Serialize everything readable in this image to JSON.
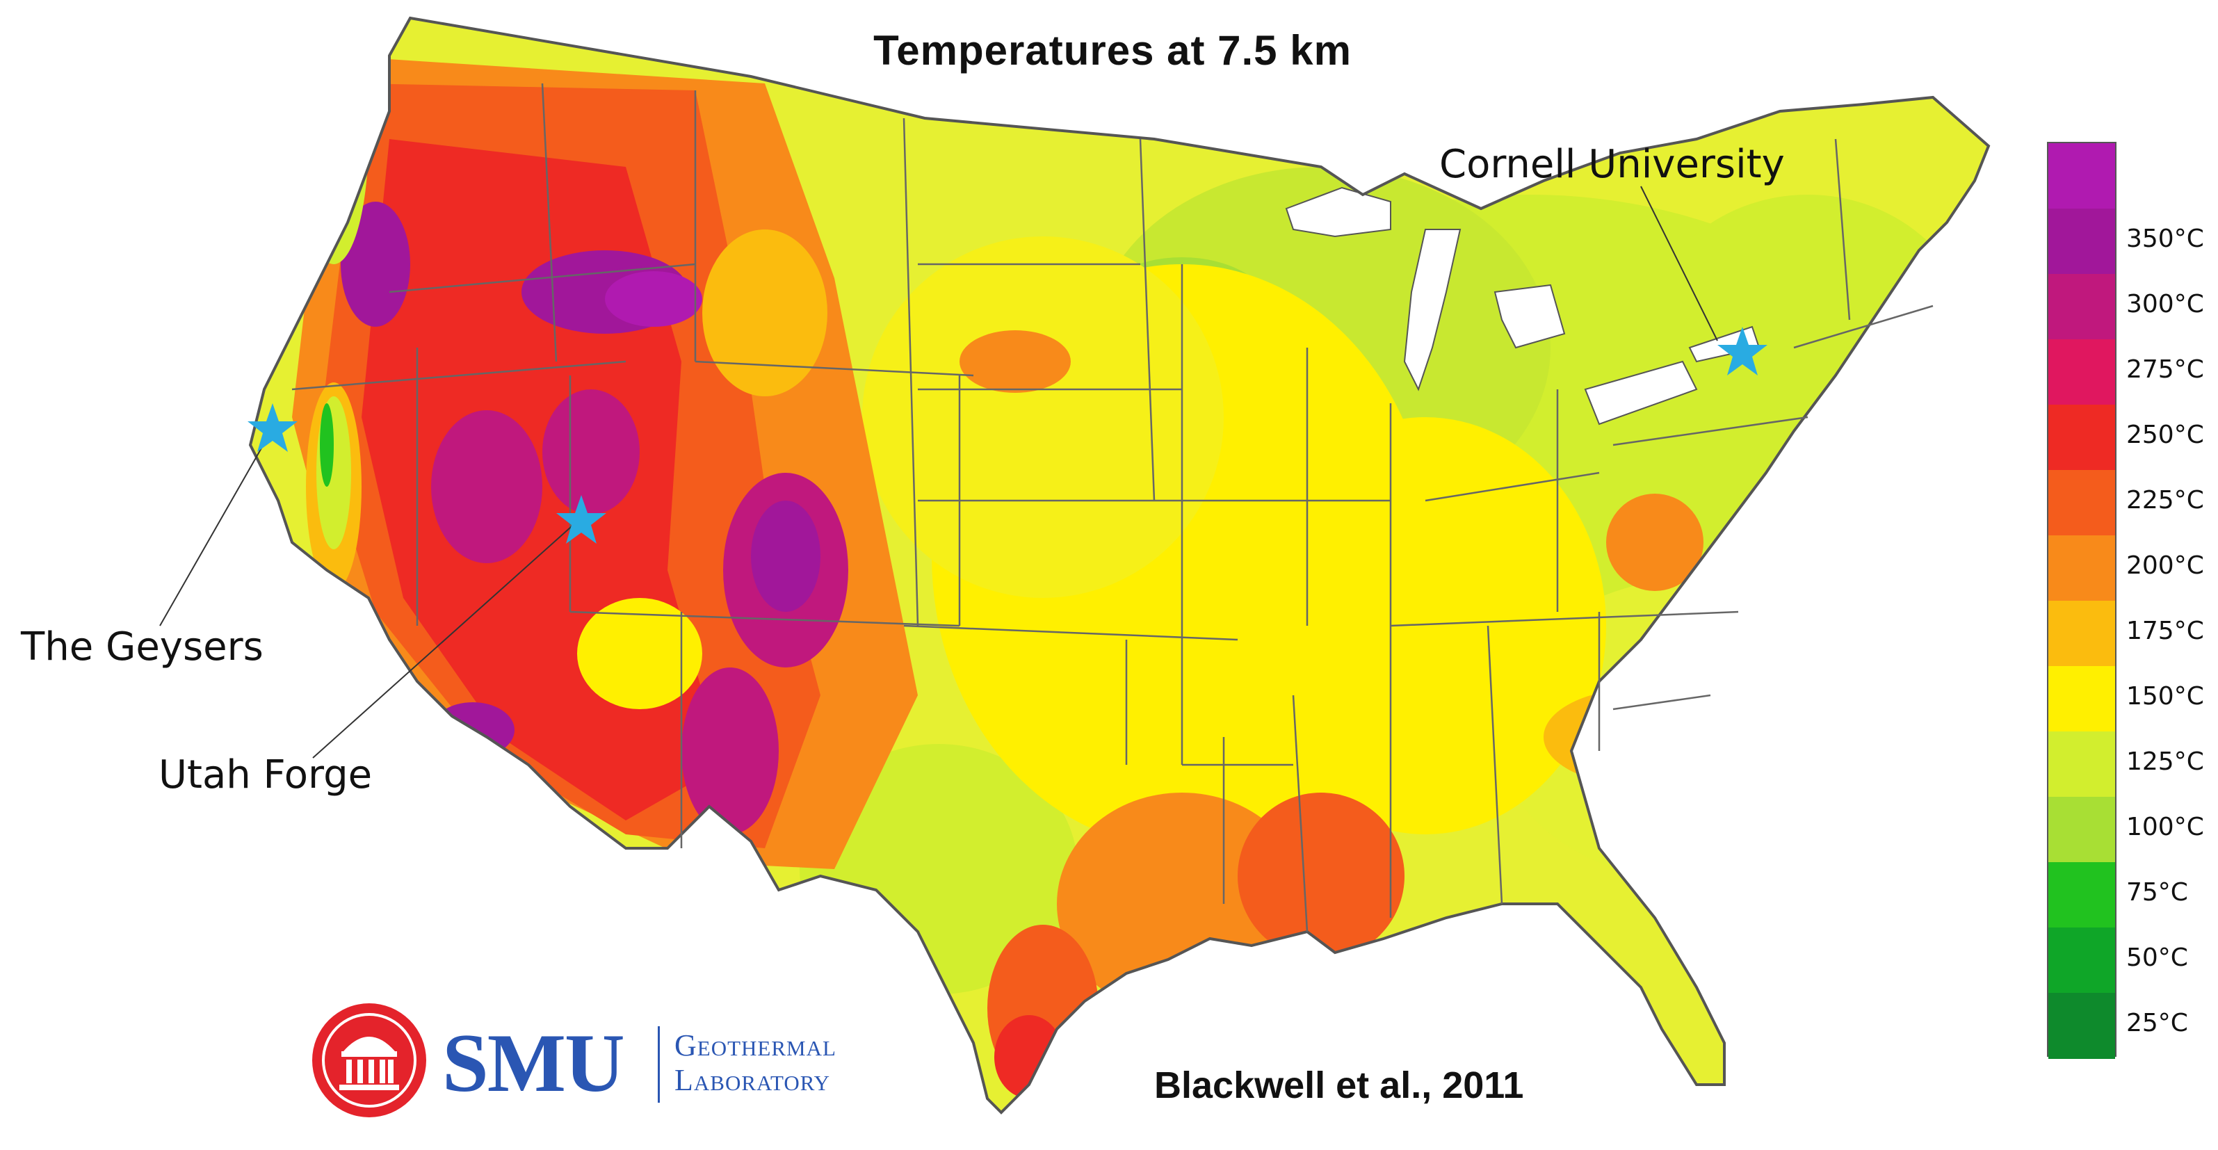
{
  "title": "Temperatures at 7.5 km",
  "citation": "Blackwell et al., 2011",
  "sites": [
    {
      "id": "geysers",
      "label": "The Geysers"
    },
    {
      "id": "forge",
      "label": "Utah Forge"
    },
    {
      "id": "cornell",
      "label": "Cornell University"
    }
  ],
  "marker_color": "#29abe2",
  "logo": {
    "name": "SMU",
    "line1": "Geothermal",
    "line2": "Laboratory",
    "seal_color": "#e4232b",
    "text_color": "#2a56b3"
  },
  "legend": {
    "ticks": [
      "350°C",
      "300°C",
      "275°C",
      "250°C",
      "225°C",
      "200°C",
      "175°C",
      "150°C",
      "125°C",
      "100°C",
      "75°C",
      "50°C",
      "25°C"
    ],
    "colors": [
      "#a1179a",
      "#c0187d",
      "#e0175f",
      "#ee2a24",
      "#f45c1c",
      "#f88a1a",
      "#fbbc0e",
      "#fff000",
      "#d2ee2e",
      "#a8df34",
      "#21c21f",
      "#0fa628",
      "#0e8a2c"
    ],
    "top_color": "#b01ab0"
  }
}
